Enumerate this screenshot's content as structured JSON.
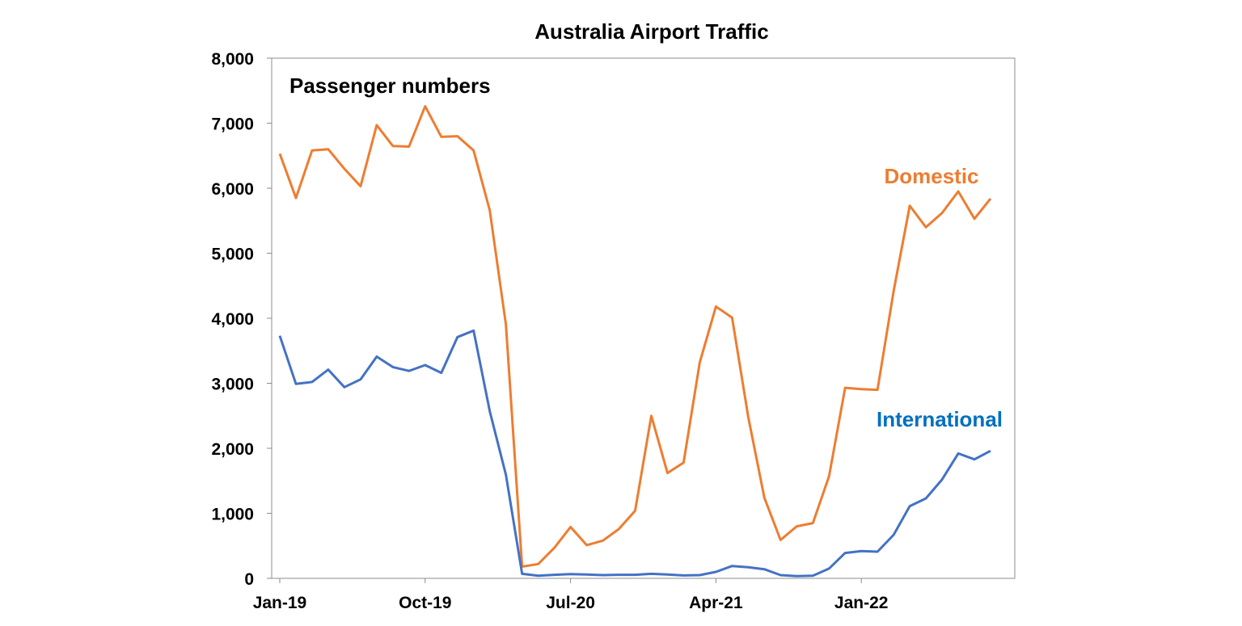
{
  "chart_data": {
    "type": "line",
    "title": "Australia Airport Traffic",
    "annotation": "Passenger numbers",
    "xlabel": "",
    "ylabel": "",
    "ylim": [
      0,
      8000
    ],
    "y_ticks": [
      "0",
      "1,000",
      "2,000",
      "3,000",
      "4,000",
      "5,000",
      "6,000",
      "7,000",
      "8,000"
    ],
    "x_tick_labels": [
      {
        "label": "Jan-19",
        "index": 0
      },
      {
        "label": "Oct-19",
        "index": 9
      },
      {
        "label": "Jul-20",
        "index": 18
      },
      {
        "label": "Apr-21",
        "index": 27
      },
      {
        "label": "Jan-22",
        "index": 36
      }
    ],
    "x": [
      "Jan-19",
      "Feb-19",
      "Mar-19",
      "Apr-19",
      "May-19",
      "Jun-19",
      "Jul-19",
      "Aug-19",
      "Sep-19",
      "Oct-19",
      "Nov-19",
      "Dec-19",
      "Jan-20",
      "Feb-20",
      "Mar-20",
      "Apr-20",
      "May-20",
      "Jun-20",
      "Jul-20",
      "Aug-20",
      "Sep-20",
      "Oct-20",
      "Nov-20",
      "Dec-20",
      "Jan-21",
      "Feb-21",
      "Mar-21",
      "Apr-21",
      "May-21",
      "Jun-21",
      "Jul-21",
      "Aug-21",
      "Sep-21",
      "Oct-21",
      "Nov-21",
      "Dec-21",
      "Jan-22",
      "Feb-22",
      "Mar-22",
      "Apr-22",
      "May-22",
      "Jun-22",
      "Jul-22",
      "Aug-22",
      "Sep-22",
      "Oct-22"
    ],
    "series": [
      {
        "name": "Domestic",
        "color": "#ED7D31",
        "values": [
          6530,
          5850,
          6580,
          6600,
          6300,
          6030,
          6970,
          6650,
          6640,
          7260,
          6790,
          6800,
          6580,
          5660,
          3900,
          180,
          220,
          470,
          790,
          510,
          580,
          760,
          1040,
          2500,
          1620,
          1780,
          3320,
          4180,
          4010,
          2480,
          1240,
          590,
          800,
          850,
          1570,
          2930,
          2910,
          2900,
          4420,
          5730,
          5400,
          5620,
          5950,
          5530,
          5840,
          null
        ]
      },
      {
        "name": "International",
        "color": "#4472C4",
        "label_color": "#0070C0",
        "values": [
          3730,
          2990,
          3020,
          3210,
          2940,
          3060,
          3410,
          3250,
          3190,
          3280,
          3160,
          3710,
          3810,
          2570,
          1590,
          70,
          40,
          55,
          65,
          60,
          50,
          55,
          55,
          70,
          60,
          45,
          50,
          100,
          190,
          170,
          140,
          50,
          35,
          40,
          150,
          390,
          420,
          410,
          670,
          1110,
          1230,
          1520,
          1920,
          1830,
          1960,
          null
        ]
      }
    ],
    "legend": "inline labels",
    "grid": false
  }
}
